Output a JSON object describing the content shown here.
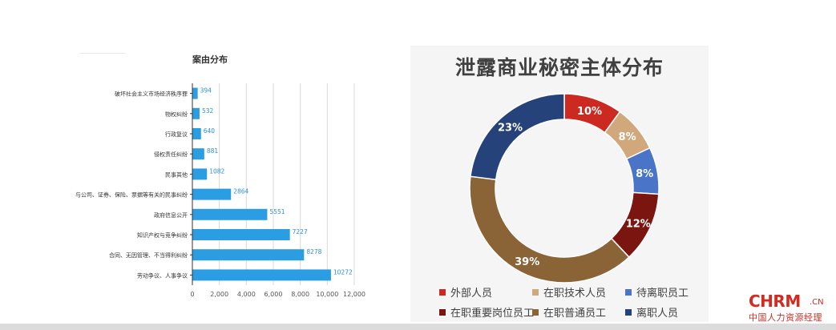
{
  "chart_data": [
    {
      "type": "bar",
      "orientation": "horizontal",
      "title": "案由分布",
      "categories": [
        "破坏社会主义市场经济秩序罪",
        "物权纠纷",
        "行政复议",
        "侵权责任纠纷",
        "民事其他",
        "与公司、证券、保险、票据等有关的民事纠纷",
        "政府信息公开",
        "知识产权与竞争纠纷",
        "合同、无因管理、不当得利纠纷",
        "劳动争议、人事争议"
      ],
      "values": [
        394,
        532,
        640,
        881,
        1082,
        2864,
        5551,
        7227,
        8278,
        10272
      ],
      "xlim": [
        0,
        12000
      ],
      "x_ticks": [
        "0",
        "2,000",
        "4,000",
        "6,000",
        "8,000",
        "10,000",
        "12,000"
      ],
      "grid": true,
      "color": "#2b9de3"
    },
    {
      "type": "pie",
      "style": "donut",
      "title": "泄露商业秘密主体分布",
      "categories": [
        "外部人员",
        "在职技术人员",
        "待离职员工",
        "在职重要岗位员工",
        "在职普通员工",
        "离职人员"
      ],
      "values": [
        10,
        8,
        8,
        12,
        39,
        23
      ],
      "labels": [
        "10%",
        "8%",
        "8%",
        "12%",
        "39%",
        "23%"
      ],
      "colors": [
        "#cc2a20",
        "#d1a87c",
        "#4a74c8",
        "#7a1510",
        "#8a6436",
        "#25437a"
      ],
      "legend_position": "bottom"
    }
  ],
  "logo": {
    "main": "CHRM",
    "suffix": ".CN",
    "sub": "中国人力资源经理"
  }
}
